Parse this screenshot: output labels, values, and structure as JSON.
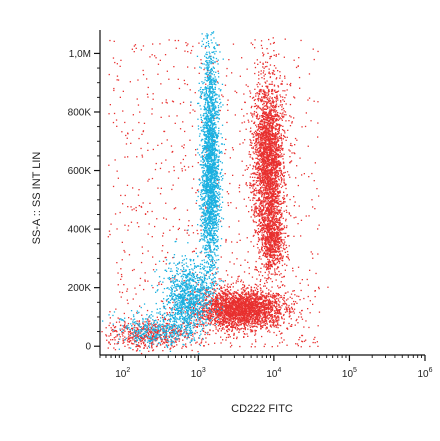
{
  "chart_data": {
    "type": "scatter",
    "xlabel": "CD222 FITC",
    "ylabel": "SS-A :: SS INT LIN",
    "x_scale": "log",
    "xlim": [
      50,
      1000000
    ],
    "ylim": [
      -30000,
      1080000
    ],
    "x_ticks": [
      {
        "value": 100,
        "base": "10",
        "exp": "2"
      },
      {
        "value": 1000,
        "base": "10",
        "exp": "3"
      },
      {
        "value": 10000,
        "base": "10",
        "exp": "4"
      },
      {
        "value": 100000,
        "base": "10",
        "exp": "5"
      },
      {
        "value": 1000000,
        "base": "10",
        "exp": "6"
      }
    ],
    "y_ticks": [
      {
        "value": 0,
        "label": "0"
      },
      {
        "value": 200000,
        "label": "200K"
      },
      {
        "value": 400000,
        "label": "400K"
      },
      {
        "value": 600000,
        "label": "600K"
      },
      {
        "value": 800000,
        "label": "800K"
      },
      {
        "value": 1000000,
        "label": "1,0M"
      }
    ],
    "series": [
      {
        "color": "#e8302f",
        "populations": [
          {
            "x_log_center": 3.92,
            "x_log_sd": 0.1,
            "y_center": 640000,
            "y_sd": 140000,
            "count": 2600
          },
          {
            "x_log_center": 3.97,
            "x_log_sd": 0.08,
            "y_center": 370000,
            "y_sd": 60000,
            "count": 700
          },
          {
            "x_log_center": 3.55,
            "x_log_sd": 0.3,
            "y_center": 130000,
            "y_sd": 35000,
            "count": 2600
          },
          {
            "x_log_center": 2.35,
            "x_log_sd": 0.3,
            "y_center": 40000,
            "y_sd": 25000,
            "count": 500
          }
        ]
      },
      {
        "color": "#1ab0e0",
        "populations": [
          {
            "x_log_center": 3.15,
            "x_log_sd": 0.06,
            "y_center": 620000,
            "y_sd": 190000,
            "count": 2400
          },
          {
            "x_log_center": 2.85,
            "x_log_sd": 0.15,
            "y_center": 170000,
            "y_sd": 60000,
            "count": 1000
          },
          {
            "x_log_center": 2.45,
            "x_log_sd": 0.25,
            "y_center": 60000,
            "y_sd": 30000,
            "count": 400
          }
        ]
      }
    ],
    "background_scatter": {
      "x_log_range": [
        1.8,
        4.6
      ],
      "y_range": [
        0,
        1050000
      ],
      "count": 900
    }
  }
}
